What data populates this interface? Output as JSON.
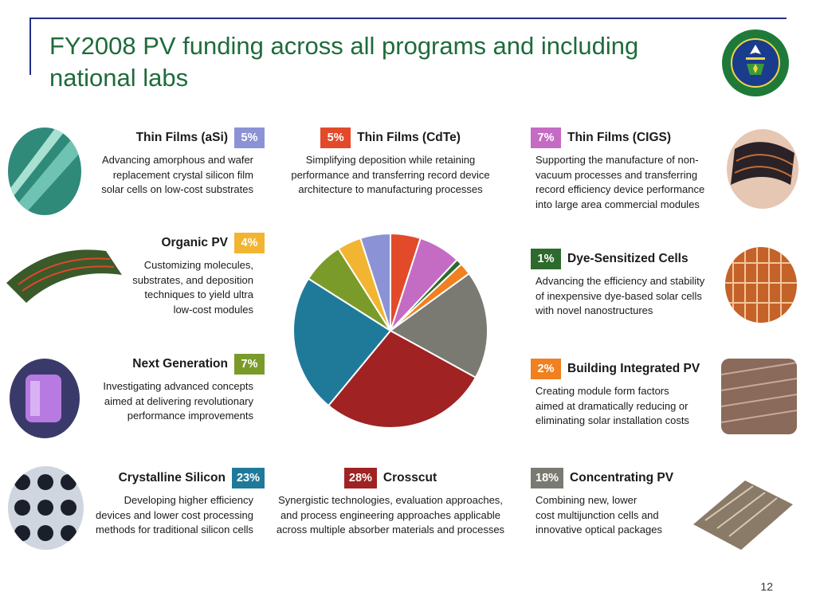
{
  "slide": {
    "title": "FY2008 PV funding across all programs and including national labs",
    "page_number": "12"
  },
  "colors": {
    "title": "#1f6b3c",
    "rule": "#1f2f86",
    "asi": "#8b93d6",
    "cdte": "#e24a2a",
    "cigs": "#c46cc4",
    "organic": "#f2b531",
    "nextgen": "#7a9b2a",
    "dye": "#2d6a2d",
    "bipv": "#f08020",
    "crystalline": "#1f7a9a",
    "crosscut": "#a02222",
    "cpv": "#7a7a72"
  },
  "cards": {
    "asi": {
      "name": "Thin Films (aSi)",
      "pct": "5%",
      "desc": [
        "Advancing amorphous and wafer",
        "replacement crystal silicon film",
        "solar cells on low-cost substrates"
      ]
    },
    "cdte": {
      "name": "Thin Films (CdTe)",
      "pct": "5%",
      "desc": [
        "Simplifying deposition while retaining",
        "performance and transferring record device",
        "architecture to manufacturing processes"
      ]
    },
    "cigs": {
      "name": "Thin Films (CIGS)",
      "pct": "7%",
      "desc": [
        "Supporting the manufacture of non-",
        "vacuum processes and transferring",
        "record efficiency device performance",
        "into large area commercial modules"
      ]
    },
    "organic": {
      "name": "Organic PV",
      "pct": "4%",
      "desc": [
        "Customizing molecules,",
        "substrates, and deposition",
        "techniques to yield ultra",
        "low-cost modules"
      ]
    },
    "dye": {
      "name": "Dye-Sensitized Cells",
      "pct": "1%",
      "desc": [
        "Advancing the efficiency and stability",
        "of inexpensive dye-based solar cells",
        "with novel nanostructures"
      ]
    },
    "nextgen": {
      "name": "Next Generation",
      "pct": "7%",
      "desc": [
        "Investigating advanced concepts",
        "aimed at delivering revolutionary",
        "performance improvements"
      ]
    },
    "bipv": {
      "name": "Building Integrated PV",
      "pct": "2%",
      "desc": [
        "Creating module form factors",
        "aimed at dramatically reducing or",
        "eliminating solar installation costs"
      ]
    },
    "crystalline": {
      "name": "Crystalline Silicon",
      "pct": "23%",
      "desc": [
        "Developing higher efficiency",
        "devices and lower cost processing",
        "methods for traditional silicon cells"
      ]
    },
    "crosscut": {
      "name": "Crosscut",
      "pct": "28%",
      "desc": [
        "Synergistic technologies, evaluation approaches,",
        "and process engineering approaches applicable",
        "across multiple absorber materials and processes"
      ]
    },
    "cpv": {
      "name": "Concentrating PV",
      "pct": "18%",
      "desc": [
        "Combining new, lower",
        "cost multijunction cells and",
        "innovative optical packages"
      ]
    }
  },
  "chart_data": {
    "type": "pie",
    "start_angle_deg": 0,
    "direction": "clockwise",
    "slices": [
      {
        "label": "Thin Films (CdTe)",
        "value": 5,
        "color": "#e24a2a"
      },
      {
        "label": "Thin Films (CIGS)",
        "value": 7,
        "color": "#c46cc4"
      },
      {
        "label": "Dye-Sensitized Cells",
        "value": 1,
        "color": "#2d6a2d"
      },
      {
        "label": "Building Integrated PV",
        "value": 2,
        "color": "#f08020"
      },
      {
        "label": "Concentrating PV",
        "value": 18,
        "color": "#7a7a72"
      },
      {
        "label": "Crosscut",
        "value": 28,
        "color": "#a02222"
      },
      {
        "label": "Crystalline Silicon",
        "value": 23,
        "color": "#1f7a9a"
      },
      {
        "label": "Next Generation",
        "value": 7,
        "color": "#7a9b2a"
      },
      {
        "label": "Organic PV",
        "value": 4,
        "color": "#f2b531"
      },
      {
        "label": "Thin Films (aSi)",
        "value": 5,
        "color": "#8b93d6"
      }
    ]
  }
}
